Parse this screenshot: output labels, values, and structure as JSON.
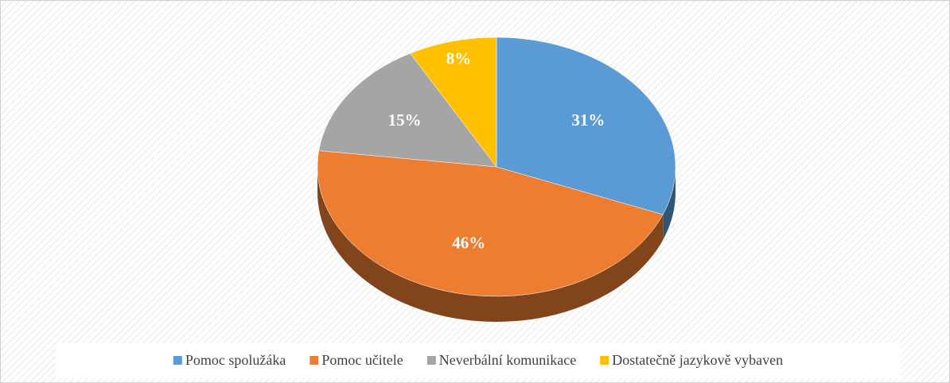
{
  "chart_data": {
    "type": "pie",
    "categories": [
      "Pomoc spolužáka",
      "Pomoc učitele",
      "Neverbální komunikace",
      "Dostatečně jazykově vybaven"
    ],
    "values": [
      31,
      46,
      15,
      8
    ],
    "value_labels": [
      "31%",
      "46%",
      "15%",
      "8%"
    ],
    "colors": [
      "#5b9bd5",
      "#ed7d31",
      "#a5a5a5",
      "#ffc000"
    ],
    "legend": "bottom"
  }
}
